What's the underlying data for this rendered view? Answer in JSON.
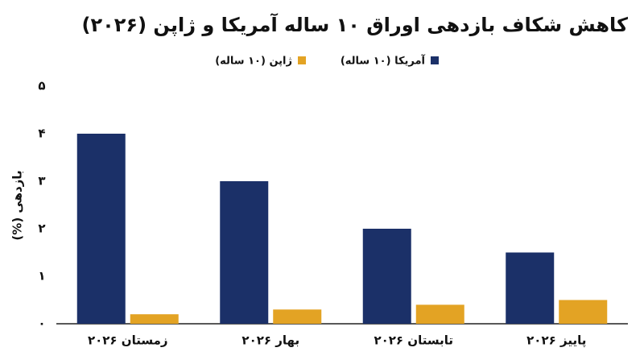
{
  "chart_data": {
    "type": "bar",
    "title": "کاهش شکاف بازدهی اوراق ۱۰ ساله آمریکا و ژاپن (۲۰۲۶)",
    "y_label": "بازدهی (%)",
    "categories": [
      "زمستان ۲۰۲۶",
      "بهار ۲۰۲۶",
      "تابستان ۲۰۲۶",
      "پاییز ۲۰۲۶"
    ],
    "series": [
      {
        "name": "آمریکا (۱۰ ساله)",
        "color": "#1b3068",
        "values": [
          4,
          3,
          2,
          1.5
        ]
      },
      {
        "name": "ژاپن (۱۰ ساله)",
        "color": "#e3a324",
        "values": [
          0.2,
          0.3,
          0.4,
          0.5
        ]
      }
    ],
    "ylim": [
      0,
      5
    ],
    "yticks": [
      {
        "value": 0,
        "label": "۰"
      },
      {
        "value": 1,
        "label": "۱"
      },
      {
        "value": 2,
        "label": "۲"
      },
      {
        "value": 3,
        "label": "۳"
      },
      {
        "value": 4,
        "label": "۴"
      },
      {
        "value": 5,
        "label": "۵"
      }
    ],
    "grid": false
  }
}
